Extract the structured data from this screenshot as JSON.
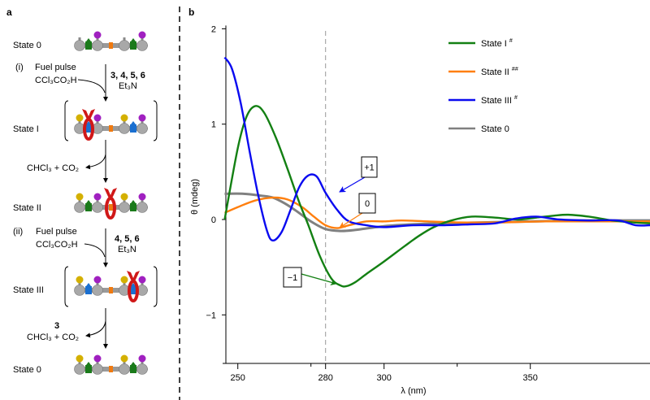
{
  "panel_a": {
    "label": "a",
    "states": [
      "State 0",
      "State I",
      "State II",
      "State III",
      "State 0"
    ],
    "step1": {
      "num": "(i)",
      "fuel": "Fuel pulse",
      "acid": "CCl₃CO₂H",
      "reagents": "3, 4, 5, 6",
      "base": "Et₃N"
    },
    "byproduct1": "CHCl₃ + CO₂",
    "step2": {
      "num": "(ii)",
      "fuel": "Fuel pulse",
      "acid": "CCl₃CO₂H",
      "reagents": "4, 5, 6",
      "base": "Et₃N"
    },
    "byproduct2_reagent": "3",
    "byproduct2": "CHCl₃ + CO₂",
    "molecules": [
      {
        "stations": "#1a7a1a",
        "ring": null,
        "caps": [
          null,
          "#a020c0",
          null,
          "#a020c0"
        ]
      },
      {
        "stations": "#1a6fd0",
        "ring": "left",
        "caps": [
          "#d4b000",
          "#a020c0",
          "#d4b000",
          "#a020c0"
        ]
      },
      {
        "stations": "#1a7a1a",
        "ring": "center",
        "caps": [
          "#d4b000",
          "#a020c0",
          "#d4b000",
          "#a020c0"
        ]
      },
      {
        "stations": "#1a6fd0",
        "ring": "right",
        "caps": [
          "#d4b000",
          "#a020c0",
          "#d4b000",
          "#a020c0"
        ]
      },
      {
        "stations": "#1a7a1a",
        "ring": null,
        "caps": [
          "#d4b000",
          "#a020c0",
          "#d4b000",
          "#a020c0"
        ]
      }
    ]
  },
  "chart_data": {
    "type": "line",
    "panel_label": "b",
    "xlabel": "λ (nm)",
    "ylabel": "θ (mdeg)",
    "xlim": [
      245,
      391
    ],
    "ylim": [
      -1.5,
      2
    ],
    "xticks": [
      250,
      280,
      300,
      350
    ],
    "xticks_minor": [
      275,
      325
    ],
    "yticks": [
      2,
      1,
      0,
      -1
    ],
    "grid": false,
    "legend_position": "top-right",
    "reference_line": {
      "x": 280,
      "style": "dashed",
      "color": "#999999"
    },
    "series": [
      {
        "name": "State I",
        "sup": "#",
        "color": "#138013",
        "x": [
          245.5,
          250,
          253,
          256,
          259,
          263,
          267,
          271,
          274,
          278,
          282,
          285,
          287,
          290,
          294,
          300,
          307,
          312,
          317,
          323,
          330,
          338,
          346,
          352,
          358,
          363,
          370,
          378,
          385,
          391
        ],
        "y": [
          0.0,
          0.75,
          1.08,
          1.19,
          1.12,
          0.86,
          0.53,
          0.18,
          -0.05,
          -0.38,
          -0.62,
          -0.69,
          -0.7,
          -0.66,
          -0.57,
          -0.44,
          -0.28,
          -0.17,
          -0.08,
          -0.01,
          0.03,
          0.02,
          0.0,
          0.02,
          0.04,
          0.05,
          0.03,
          -0.01,
          -0.03,
          -0.04
        ]
      },
      {
        "name": "State II",
        "sup": "##",
        "color": "#ff7f0e",
        "x": [
          245.5,
          250,
          256,
          262,
          267,
          272,
          276,
          280,
          284,
          288,
          294,
          300,
          306,
          315,
          325,
          340,
          355,
          370,
          391
        ],
        "y": [
          0.07,
          0.13,
          0.2,
          0.23,
          0.21,
          0.13,
          0.03,
          -0.06,
          -0.09,
          -0.06,
          -0.02,
          -0.02,
          -0.01,
          -0.02,
          -0.03,
          -0.03,
          -0.02,
          -0.02,
          -0.02
        ]
      },
      {
        "name": "State III",
        "sup": "#",
        "color": "#0a0af0",
        "x": [
          245.5,
          248,
          251,
          254,
          257,
          260,
          262,
          265,
          268,
          271,
          274,
          277,
          280,
          284,
          288,
          294,
          300,
          310,
          320,
          330,
          338,
          345,
          352,
          360,
          370,
          380,
          386,
          391
        ],
        "y": [
          1.7,
          1.58,
          1.22,
          0.72,
          0.25,
          -0.12,
          -0.22,
          -0.13,
          0.1,
          0.34,
          0.46,
          0.45,
          0.28,
          0.1,
          -0.02,
          -0.06,
          -0.08,
          -0.06,
          -0.06,
          -0.05,
          -0.04,
          0.01,
          0.03,
          0.0,
          -0.01,
          -0.01,
          -0.06,
          -0.06
        ]
      },
      {
        "name": "State 0",
        "sup": "",
        "color": "#808080",
        "x": [
          245.5,
          252,
          258,
          262,
          266,
          270,
          275,
          280,
          285,
          290,
          300,
          310,
          320,
          335,
          350,
          370,
          391
        ],
        "y": [
          0.27,
          0.27,
          0.25,
          0.23,
          0.17,
          0.09,
          -0.02,
          -0.1,
          -0.12,
          -0.11,
          -0.07,
          -0.05,
          -0.04,
          -0.03,
          -0.02,
          -0.01,
          -0.01
        ]
      }
    ],
    "annotations": [
      {
        "text": "+1",
        "color": "#0a0af0",
        "x": 280,
        "y": 0.28
      },
      {
        "text": "0",
        "color": "#ff7f0e",
        "x": 280,
        "y": -0.1
      },
      {
        "text": "−1",
        "color": "#138013",
        "x": 280,
        "y": -0.72
      }
    ]
  }
}
